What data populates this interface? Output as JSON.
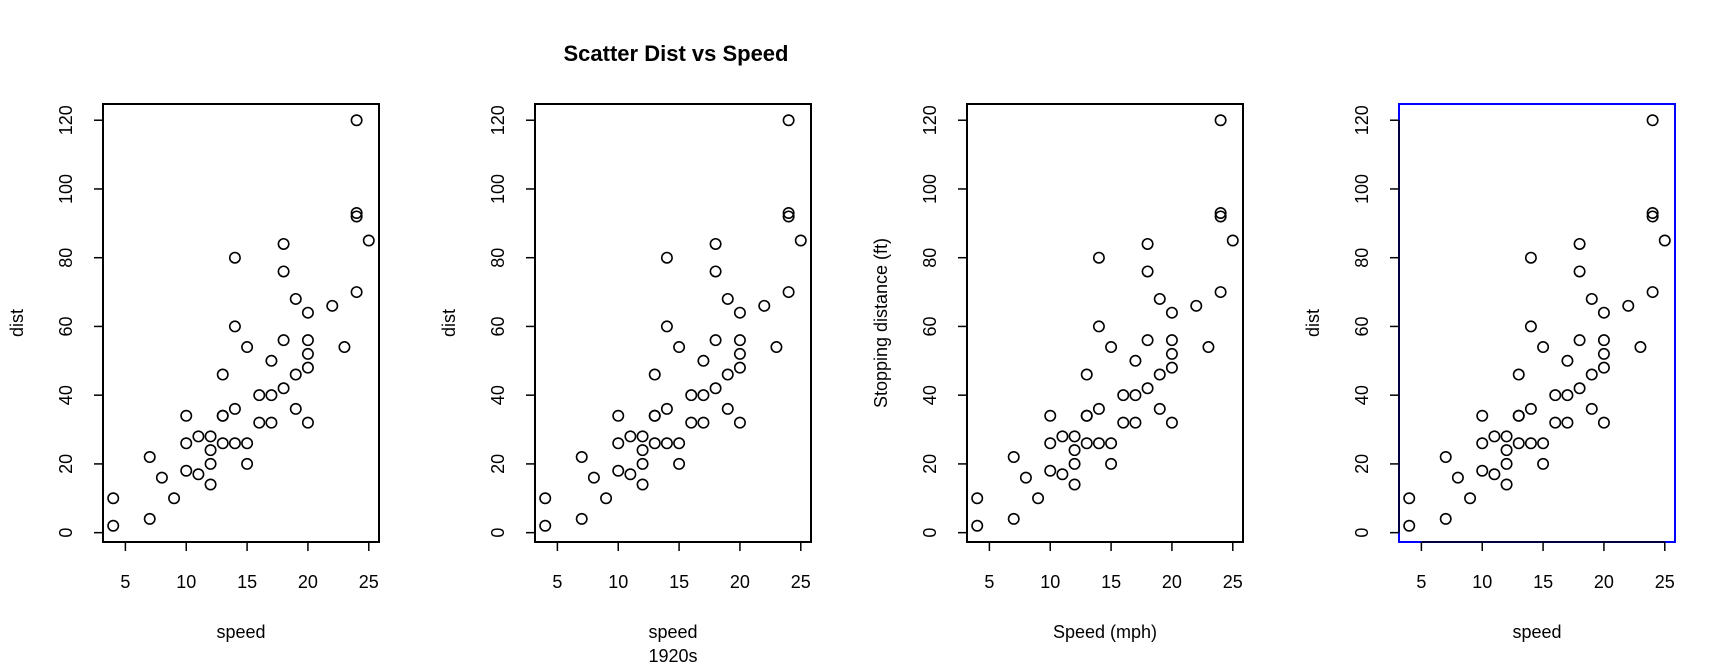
{
  "title": "Scatter Dist vs Speed",
  "colors": {
    "frame": "#000000",
    "highlight_frame": "#0000ff",
    "points": "#000000"
  },
  "chart_data": {
    "type": "scatter",
    "title": "Scatter Dist vs Speed",
    "x": [
      4,
      4,
      7,
      7,
      8,
      9,
      10,
      10,
      10,
      11,
      11,
      12,
      12,
      12,
      12,
      13,
      13,
      13,
      13,
      14,
      14,
      14,
      14,
      15,
      15,
      15,
      16,
      16,
      17,
      17,
      17,
      18,
      18,
      18,
      18,
      19,
      19,
      19,
      20,
      20,
      20,
      20,
      20,
      22,
      23,
      24,
      24,
      24,
      24,
      25
    ],
    "y": [
      2,
      10,
      4,
      22,
      16,
      10,
      18,
      26,
      34,
      17,
      28,
      14,
      20,
      24,
      28,
      26,
      34,
      34,
      46,
      26,
      36,
      60,
      80,
      20,
      26,
      54,
      32,
      40,
      32,
      40,
      50,
      42,
      56,
      76,
      84,
      36,
      46,
      68,
      32,
      48,
      52,
      56,
      64,
      66,
      54,
      70,
      92,
      93,
      120,
      85
    ],
    "xlim": [
      3.16,
      25.84
    ],
    "ylim": [
      -2.72,
      124.72
    ],
    "xticks": [
      "5",
      "10",
      "15",
      "20",
      "25"
    ],
    "yticks": [
      "0",
      "20",
      "40",
      "60",
      "80",
      "100",
      "120"
    ],
    "grid": false,
    "panels": [
      {
        "xlabel": "speed",
        "ylabel": "dist",
        "sub": "",
        "frame_color": "#000000"
      },
      {
        "xlabel": "speed",
        "ylabel": "dist",
        "sub": "1920s",
        "frame_color": "#000000"
      },
      {
        "xlabel": "Speed (mph)",
        "ylabel": "Stopping distance (ft)",
        "sub": "",
        "frame_color": "#000000"
      },
      {
        "xlabel": "speed",
        "ylabel": "dist",
        "sub": "",
        "frame_color": "#0000ff"
      }
    ]
  }
}
